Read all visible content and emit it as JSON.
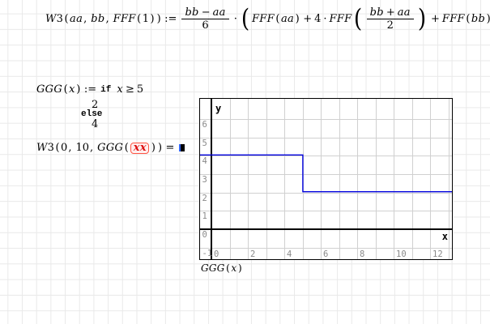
{
  "symbols": {
    "paren_open": "(",
    "paren_close": ")"
  },
  "colors": {
    "sheet_grid": "#e9e9e9",
    "error_border": "#ff5544",
    "error_text": "#dd1111",
    "error_fill": "#ffeeee",
    "cursor_blue": "#3366ff",
    "formula_text": "#000000"
  },
  "formulas": {
    "simpson_def": {
      "tokens": [
        {
          "t": "var",
          "s": "W"
        },
        {
          "t": "num",
          "s": "3"
        },
        {
          "t": "paren",
          "items": [
            {
              "t": "var",
              "s": "aa"
            },
            {
              "t": "op",
              "s": ","
            },
            {
              "t": "var",
              "s": "bb"
            },
            {
              "t": "op",
              "s": ","
            },
            {
              "t": "var",
              "s": "FFF"
            },
            {
              "t": "paren",
              "items": [
                {
                  "t": "num",
                  "s": "1"
                }
              ]
            }
          ]
        },
        {
          "t": "op",
          "s": ":="
        },
        {
          "t": "frac",
          "num": [
            {
              "t": "var",
              "s": "bb"
            },
            {
              "t": "op",
              "s": "−"
            },
            {
              "t": "var",
              "s": "aa"
            }
          ],
          "den": [
            {
              "t": "num",
              "s": "6"
            }
          ]
        },
        {
          "t": "op",
          "s": "·"
        },
        {
          "t": "paren",
          "items": [
            {
              "t": "var",
              "s": "FFF"
            },
            {
              "t": "paren",
              "items": [
                {
                  "t": "var",
                  "s": "aa"
                }
              ]
            },
            {
              "t": "op",
              "s": "+"
            },
            {
              "t": "num",
              "s": "4"
            },
            {
              "t": "op",
              "s": "·"
            },
            {
              "t": "var",
              "s": "FFF"
            },
            {
              "t": "paren",
              "items": [
                {
                  "t": "frac",
                  "num": [
                    {
                      "t": "var",
                      "s": "bb"
                    },
                    {
                      "t": "op",
                      "s": "+"
                    },
                    {
                      "t": "var",
                      "s": "aa"
                    }
                  ],
                  "den": [
                    {
                      "t": "num",
                      "s": "2"
                    }
                  ]
                }
              ]
            },
            {
              "t": "op",
              "s": "+"
            },
            {
              "t": "var",
              "s": "FFF"
            },
            {
              "t": "paren",
              "items": [
                {
                  "t": "var",
                  "s": "bb"
                }
              ]
            }
          ]
        }
      ]
    },
    "ggg_def": {
      "line1": [
        {
          "t": "var",
          "s": "GGG"
        },
        {
          "t": "paren",
          "items": [
            {
              "t": "var",
              "s": "x"
            }
          ]
        },
        {
          "t": "op",
          "s": ":="
        },
        {
          "t": "kw",
          "s": "if"
        },
        {
          "t": "sp"
        },
        {
          "t": "var",
          "s": "x"
        },
        {
          "t": "op",
          "s": "≥"
        },
        {
          "t": "num",
          "s": "5"
        }
      ],
      "line2": [
        {
          "t": "num",
          "s": "2"
        }
      ],
      "line3": [
        {
          "t": "kw",
          "s": "else"
        }
      ],
      "line4": [
        {
          "t": "num",
          "s": "4"
        }
      ]
    },
    "w3_call": {
      "tokens": [
        {
          "t": "var",
          "s": "W"
        },
        {
          "t": "num",
          "s": "3"
        },
        {
          "t": "paren",
          "items": [
            {
              "t": "num",
              "s": "0"
            },
            {
              "t": "op",
              "s": ","
            },
            {
              "t": "num",
              "s": "10"
            },
            {
              "t": "op",
              "s": ","
            },
            {
              "t": "var",
              "s": "GGG"
            },
            {
              "t": "paren",
              "items": [
                {
                  "t": "err",
                  "items": [
                    {
                      "t": "var",
                      "s": "xx"
                    }
                  ]
                }
              ]
            }
          ]
        },
        {
          "t": "op",
          "s": "="
        },
        {
          "t": "ph"
        }
      ]
    },
    "plot_caption": {
      "tokens": [
        {
          "t": "var",
          "s": "GGG"
        },
        {
          "t": "paren",
          "items": [
            {
              "t": "var",
              "s": "x"
            }
          ]
        }
      ]
    }
  },
  "chart_data": {
    "type": "line",
    "caption": "GGG (x)",
    "x_axis_label": "x",
    "y_axis_label": "y",
    "x_ticks": [
      0,
      2,
      4,
      6,
      8,
      10,
      12
    ],
    "y_ticks": [
      6,
      5,
      4,
      3,
      2,
      1,
      0,
      -1
    ],
    "x_gridlines": [
      0,
      1,
      2,
      3,
      4,
      5,
      6,
      7,
      8,
      9,
      10,
      11,
      12,
      13
    ],
    "y_gridlines": [
      -1,
      0,
      1,
      2,
      3,
      4,
      5,
      6
    ],
    "x_range": [
      -0.64,
      13.18
    ],
    "y_range": [
      -1.63,
      7.1
    ],
    "grid_on": true,
    "series": [
      {
        "name": "GGG(x)",
        "color": "#0000dd",
        "points": [
          [
            -0.64,
            4
          ],
          [
            5,
            4
          ],
          [
            5,
            2
          ],
          [
            13.18,
            2
          ]
        ]
      }
    ],
    "colors": {
      "plot_grid": "#d0d0d0",
      "axis": "#000000",
      "tick_label": "#8a8a8a",
      "frame": "#000000"
    }
  }
}
